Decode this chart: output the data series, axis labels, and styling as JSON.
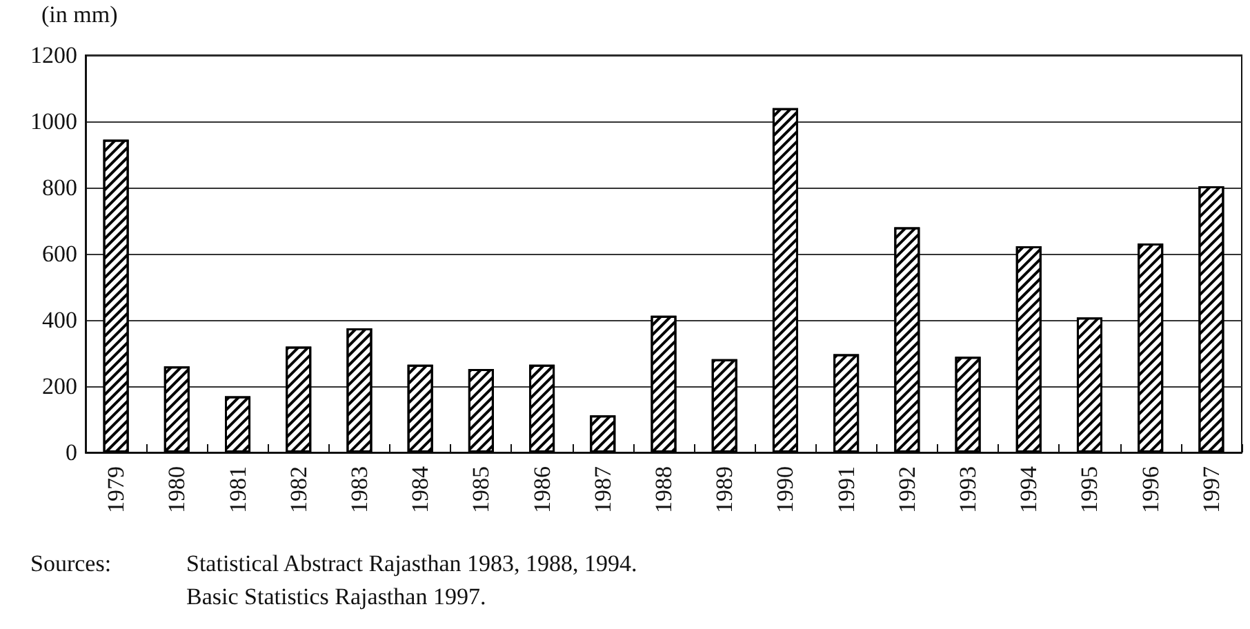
{
  "chart_data": {
    "type": "bar",
    "ylabel": "(in mm)",
    "categories": [
      "1979",
      "1980",
      "1981",
      "1982",
      "1983",
      "1984",
      "1985",
      "1986",
      "1987",
      "1988",
      "1989",
      "1990",
      "1991",
      "1992",
      "1993",
      "1994",
      "1995",
      "1996",
      "1997"
    ],
    "values": [
      945,
      260,
      170,
      320,
      375,
      265,
      252,
      265,
      112,
      413,
      282,
      1040,
      297,
      680,
      289,
      623,
      408,
      631,
      804
    ],
    "color": "#000000",
    "ylim": [
      0,
      1200
    ],
    "yticks": [
      0,
      200,
      400,
      600,
      800,
      1000,
      1200
    ],
    "grid": "y",
    "annotations": [
      "Sources:",
      "Statistical Abstract Rajasthan 1983, 1988, 1994.",
      "Basic Statistics Rajasthan 1997."
    ]
  }
}
